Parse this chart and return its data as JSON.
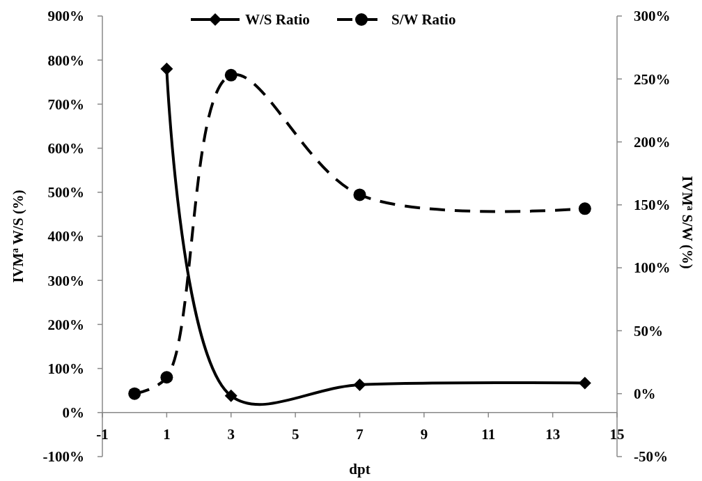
{
  "chart_data": {
    "type": "line",
    "xlabel": "dpt",
    "ylabel": "IVM$^{a}$  W/S (%)",
    "y2label": "IVM$^{a}$ S/W (%)",
    "xlim": [
      -1,
      15
    ],
    "xticks": [
      -1,
      1,
      3,
      5,
      7,
      9,
      11,
      13,
      15
    ],
    "ylim": [
      -100,
      900
    ],
    "yticks": [
      {
        "value": -100,
        "label": "-100%"
      },
      {
        "value": 0,
        "label": "0%"
      },
      {
        "value": 100,
        "label": "100%"
      },
      {
        "value": 200,
        "label": "200%"
      },
      {
        "value": 300,
        "label": "300%"
      },
      {
        "value": 400,
        "label": "400%"
      },
      {
        "value": 500,
        "label": "500%"
      },
      {
        "value": 600,
        "label": "600%"
      },
      {
        "value": 700,
        "label": "700%"
      },
      {
        "value": 800,
        "label": "800%"
      },
      {
        "value": 900,
        "label": "900%"
      }
    ],
    "y2lim": [
      -50,
      300
    ],
    "y2ticks": [
      {
        "value": -50,
        "label": "-50%"
      },
      {
        "value": 0,
        "label": "0%"
      },
      {
        "value": 50,
        "label": "50%"
      },
      {
        "value": 100,
        "label": "100%"
      },
      {
        "value": 150,
        "label": "150%"
      },
      {
        "value": 200,
        "label": "200%"
      },
      {
        "value": 250,
        "label": "250%"
      },
      {
        "value": 300,
        "label": "300%"
      }
    ],
    "legend": "top",
    "grid": false,
    "series": [
      {
        "name": "W/S Ratio",
        "color": "#000000",
        "x": [
          1,
          3,
          7,
          14
        ],
        "values": [
          780,
          38,
          63,
          67
        ],
        "marker": "diamond",
        "line_style": "solid"
      },
      {
        "name": "S/W Ratio",
        "color": "#000000",
        "axis": "y2",
        "x": [
          0,
          1,
          3,
          7,
          14
        ],
        "values": [
          0,
          13,
          253,
          158,
          147
        ],
        "marker": "circle",
        "line_style": "dashed"
      }
    ]
  }
}
